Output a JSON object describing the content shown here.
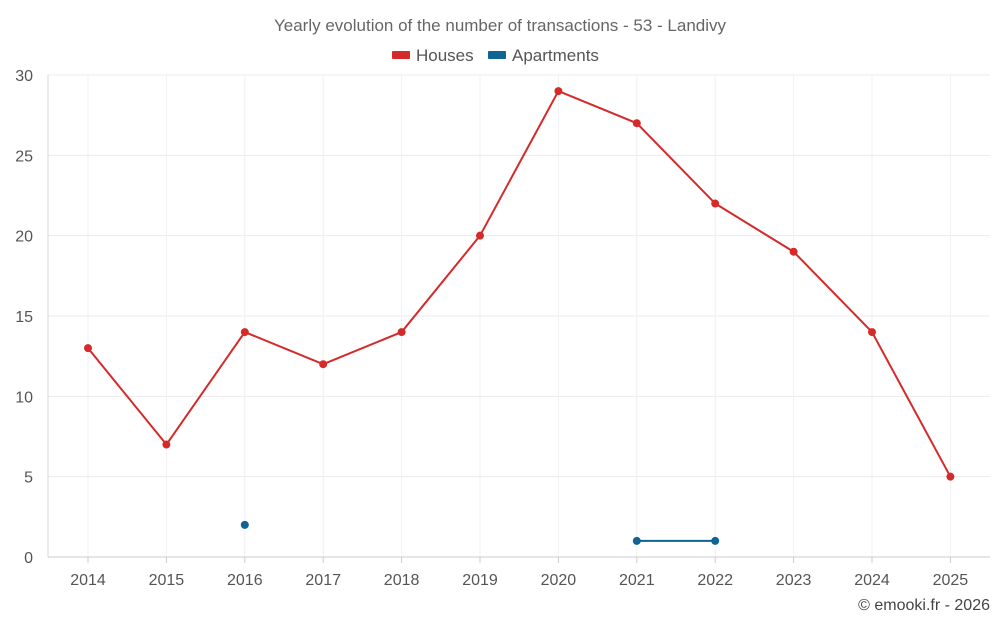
{
  "chart_data": {
    "type": "line",
    "title": "Yearly evolution of the number of transactions - 53 - Landivy",
    "categories": [
      "2014",
      "2015",
      "2016",
      "2017",
      "2018",
      "2019",
      "2020",
      "2021",
      "2022",
      "2023",
      "2024",
      "2025"
    ],
    "series": [
      {
        "name": "Houses",
        "color": "#d42a2a",
        "values": [
          13,
          7,
          14,
          12,
          14,
          20,
          29,
          27,
          22,
          19,
          14,
          5
        ]
      },
      {
        "name": "Apartments",
        "color": "#0f6494",
        "values": [
          null,
          null,
          2,
          null,
          null,
          null,
          null,
          1,
          1,
          null,
          null,
          null
        ]
      }
    ],
    "ylim": [
      0,
      30
    ],
    "yticks": [
      "0",
      "5",
      "10",
      "15",
      "20",
      "25",
      "30"
    ],
    "xlabel": "",
    "ylabel": "",
    "grid": true,
    "legend": "top-center"
  },
  "footer": {
    "credit": "© emooki.fr - 2026"
  }
}
